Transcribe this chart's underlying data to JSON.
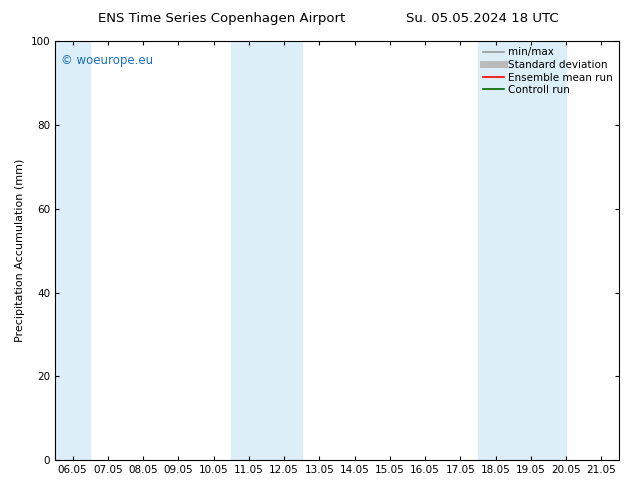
{
  "title_left": "ENS Time Series Copenhagen Airport",
  "title_right": "Su. 05.05.2024 18 UTC",
  "ylabel": "Precipitation Accumulation (mm)",
  "ylim": [
    0,
    100
  ],
  "xtick_labels": [
    "06.05",
    "07.05",
    "08.05",
    "09.05",
    "10.05",
    "11.05",
    "12.05",
    "13.05",
    "14.05",
    "15.05",
    "16.05",
    "17.05",
    "18.05",
    "19.05",
    "20.05",
    "21.05"
  ],
  "ytick_labels": [
    0,
    20,
    40,
    60,
    80,
    100
  ],
  "shaded_bands": [
    {
      "xstart": 0,
      "xend": 1
    },
    {
      "xstart": 5,
      "xend": 7
    },
    {
      "xstart": 12,
      "xend": 14.5
    }
  ],
  "shade_color": "#dceef8",
  "watermark_text": "© woeurope.eu",
  "watermark_color": "#1a6fbf",
  "legend_entries": [
    {
      "label": "min/max",
      "color": "#999999",
      "lw": 1.2,
      "style": "solid"
    },
    {
      "label": "Standard deviation",
      "color": "#bbbbbb",
      "lw": 5,
      "style": "solid"
    },
    {
      "label": "Ensemble mean run",
      "color": "#ff0000",
      "lw": 1.2,
      "style": "solid"
    },
    {
      "label": "Controll run",
      "color": "#006600",
      "lw": 1.2,
      "style": "solid"
    }
  ],
  "bg_color": "#ffffff",
  "title_fontsize": 9.5,
  "axis_fontsize": 8,
  "tick_fontsize": 7.5,
  "watermark_fontsize": 8.5,
  "legend_fontsize": 7.5
}
